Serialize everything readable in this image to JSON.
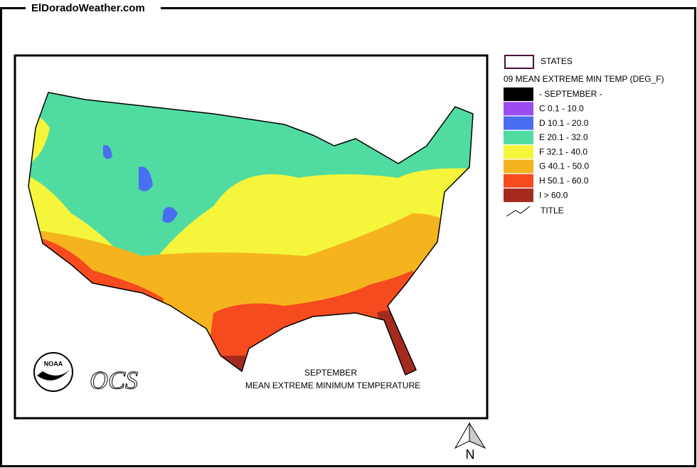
{
  "header": {
    "site": "ElDoradoWeather.com"
  },
  "legend": {
    "states": "STATES",
    "title": "09 MEAN EXTREME MIN TEMP (DEG_F)",
    "items": [
      {
        "label": "- SEPTEMBER -",
        "color": "#000000"
      },
      {
        "label": "C 0.1 - 10.0",
        "color": "#9b4cf0"
      },
      {
        "label": "D 10.1 - 20.0",
        "color": "#4a6ef0"
      },
      {
        "label": "E 20.1 - 32.0",
        "color": "#50dca0"
      },
      {
        "label": "F 32.1 - 40.0",
        "color": "#f5f53c"
      },
      {
        "label": "G 40.1 - 50.0",
        "color": "#f5b41e"
      },
      {
        "label": "H 50.1 - 60.0",
        "color": "#f54b1e"
      },
      {
        "label": "I > 60.0",
        "color": "#a52a1e"
      }
    ],
    "line": "TITLE"
  },
  "map": {
    "caption": [
      "SEPTEMBER",
      "MEAN EXTREME MINIMUM TEMPERATURE"
    ],
    "logo": "NOAA",
    "ocs": "OCS",
    "north": "N"
  }
}
